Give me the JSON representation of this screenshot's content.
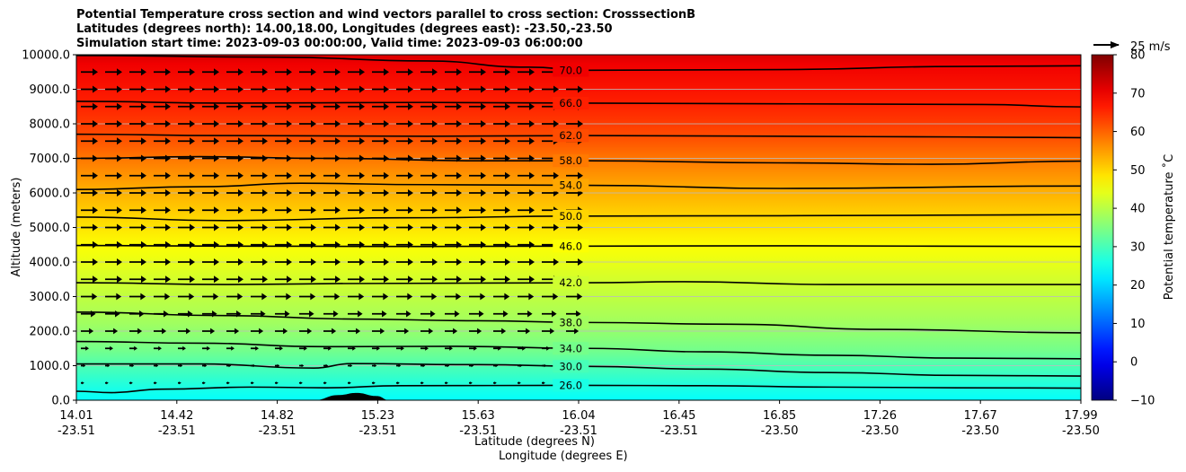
{
  "chart_data": {
    "type": "contour",
    "title_lines": [
      "Potential Temperature cross section and wind vectors parallel to cross section: CrosssectionB",
      "Latitudes (degrees north): 14.00,18.00, Longitudes (degrees east): -23.50,-23.50",
      "Simulation start time: 2023-09-03 00:00:00, Valid time: 2023-09-03 06:00:00"
    ],
    "xlabel_lat": "Latitude (degrees N)",
    "xlabel_lon": "Longitude (degrees E)",
    "ylabel": "Altitude (meters)",
    "ylim": [
      0,
      10000
    ],
    "y_ticks": [
      "0.0",
      "1000.0",
      "2000.0",
      "3000.0",
      "4000.0",
      "5000.0",
      "6000.0",
      "7000.0",
      "8000.0",
      "9000.0",
      "10000.0"
    ],
    "x_ticks": [
      {
        "lat": "14.01",
        "lon": "-23.51"
      },
      {
        "lat": "14.42",
        "lon": "-23.51"
      },
      {
        "lat": "14.82",
        "lon": "-23.51"
      },
      {
        "lat": "15.23",
        "lon": "-23.51"
      },
      {
        "lat": "15.63",
        "lon": "-23.51"
      },
      {
        "lat": "16.04",
        "lon": "-23.51"
      },
      {
        "lat": "16.45",
        "lon": "-23.51"
      },
      {
        "lat": "16.85",
        "lon": "-23.50"
      },
      {
        "lat": "17.26",
        "lon": "-23.50"
      },
      {
        "lat": "17.67",
        "lon": "-23.50"
      },
      {
        "lat": "17.99",
        "lon": "-23.50"
      }
    ],
    "x_range": [
      14.01,
      17.99
    ],
    "colorbar": {
      "label": "Potential temperature $^\\circ$C",
      "label_text": "Potential temperature ˚C",
      "range": [
        -10,
        80
      ],
      "ticks": [
        -10,
        0,
        10,
        20,
        30,
        40,
        50,
        60,
        70,
        80
      ],
      "colormap": "jet"
    },
    "quiver_key": {
      "label": "25 m/s"
    },
    "contours": [
      {
        "level": 26.0,
        "label": "26.0",
        "points": [
          [
            14.01,
            260
          ],
          [
            14.15,
            220
          ],
          [
            14.35,
            320
          ],
          [
            14.7,
            380
          ],
          [
            15.0,
            360
          ],
          [
            15.3,
            420
          ],
          [
            16.0,
            430
          ],
          [
            16.5,
            420
          ],
          [
            17.0,
            380
          ],
          [
            17.5,
            360
          ],
          [
            17.99,
            350
          ]
        ]
      },
      {
        "level": 30.0,
        "label": "30.0",
        "points": [
          [
            14.01,
            1050
          ],
          [
            14.5,
            1050
          ],
          [
            14.95,
            930
          ],
          [
            15.1,
            1060
          ],
          [
            15.6,
            1030
          ],
          [
            16.04,
            980
          ],
          [
            16.5,
            900
          ],
          [
            17.0,
            800
          ],
          [
            17.5,
            720
          ],
          [
            17.99,
            700
          ]
        ]
      },
      {
        "level": 34.0,
        "label": "34.0",
        "points": [
          [
            14.01,
            1700
          ],
          [
            14.5,
            1650
          ],
          [
            15.0,
            1550
          ],
          [
            15.5,
            1560
          ],
          [
            16.04,
            1500
          ],
          [
            16.5,
            1400
          ],
          [
            17.0,
            1300
          ],
          [
            17.5,
            1220
          ],
          [
            17.99,
            1200
          ]
        ]
      },
      {
        "level": 38.0,
        "label": "38.0",
        "points": [
          [
            14.01,
            2550
          ],
          [
            14.6,
            2450
          ],
          [
            15.1,
            2350
          ],
          [
            15.6,
            2300
          ],
          [
            16.04,
            2250
          ],
          [
            16.6,
            2200
          ],
          [
            17.2,
            2050
          ],
          [
            17.99,
            1950
          ]
        ]
      },
      {
        "level": 42.0,
        "label": "42.0",
        "points": [
          [
            14.01,
            3400
          ],
          [
            14.6,
            3350
          ],
          [
            15.2,
            3380
          ],
          [
            16.04,
            3400
          ],
          [
            16.4,
            3430
          ],
          [
            17.0,
            3350
          ],
          [
            17.99,
            3350
          ]
        ]
      },
      {
        "level": 46.0,
        "label": "46.0",
        "points": [
          [
            14.01,
            4480
          ],
          [
            14.6,
            4460
          ],
          [
            15.4,
            4450
          ],
          [
            16.04,
            4460
          ],
          [
            16.8,
            4470
          ],
          [
            17.99,
            4450
          ]
        ]
      },
      {
        "level": 50.0,
        "label": "50.0",
        "points": [
          [
            14.01,
            5300
          ],
          [
            14.6,
            5200
          ],
          [
            15.3,
            5280
          ],
          [
            16.04,
            5330
          ],
          [
            16.8,
            5340
          ],
          [
            17.99,
            5370
          ]
        ]
      },
      {
        "level": 54.0,
        "label": "54.0",
        "points": [
          [
            14.01,
            6100
          ],
          [
            14.5,
            6180
          ],
          [
            14.9,
            6280
          ],
          [
            15.4,
            6240
          ],
          [
            16.04,
            6220
          ],
          [
            16.8,
            6130
          ],
          [
            17.99,
            6200
          ]
        ]
      },
      {
        "level": 58.0,
        "label": "58.0",
        "points": [
          [
            14.01,
            7000
          ],
          [
            14.5,
            7050
          ],
          [
            15.0,
            7000
          ],
          [
            15.6,
            6930
          ],
          [
            16.04,
            6930
          ],
          [
            16.8,
            6870
          ],
          [
            17.4,
            6830
          ],
          [
            17.99,
            6920
          ]
        ]
      },
      {
        "level": 62.0,
        "label": "62.0",
        "points": [
          [
            14.01,
            7700
          ],
          [
            14.6,
            7660
          ],
          [
            15.4,
            7640
          ],
          [
            16.04,
            7660
          ],
          [
            16.8,
            7640
          ],
          [
            17.5,
            7620
          ],
          [
            17.99,
            7600
          ]
        ]
      },
      {
        "level": 66.0,
        "label": "66.0",
        "points": [
          [
            14.01,
            8650
          ],
          [
            14.6,
            8600
          ],
          [
            15.4,
            8620
          ],
          [
            16.04,
            8600
          ],
          [
            16.8,
            8580
          ],
          [
            17.6,
            8560
          ],
          [
            17.99,
            8490
          ]
        ]
      },
      {
        "level": 70.0,
        "label": "70.0",
        "points": [
          [
            14.01,
            9980
          ],
          [
            14.8,
            9930
          ],
          [
            15.4,
            9820
          ],
          [
            15.8,
            9640
          ],
          [
            16.04,
            9550
          ],
          [
            16.8,
            9570
          ],
          [
            17.5,
            9660
          ],
          [
            17.99,
            9680
          ]
        ]
      }
    ],
    "wind_vectors": {
      "description": "wind vectors parallel to cross section, pointing in +x direction",
      "rows_altitude_m": [
        9500,
        9000,
        8500,
        8000,
        7500,
        7000,
        6500,
        6000,
        5500,
        5000,
        4500,
        4000,
        3500,
        3000,
        2500,
        2000,
        1500,
        1000,
        500
      ],
      "relative_magnitude": [
        1.0,
        1.0,
        1.0,
        1.0,
        1.0,
        1.0,
        1.0,
        1.0,
        1.0,
        1.0,
        1.0,
        1.0,
        1.0,
        0.95,
        0.85,
        0.7,
        0.4,
        0.2,
        0.1
      ]
    },
    "terrain": {
      "points": [
        [
          14.95,
          0
        ],
        [
          15.05,
          150
        ],
        [
          15.12,
          210
        ],
        [
          15.2,
          120
        ],
        [
          15.25,
          0
        ]
      ]
    }
  }
}
